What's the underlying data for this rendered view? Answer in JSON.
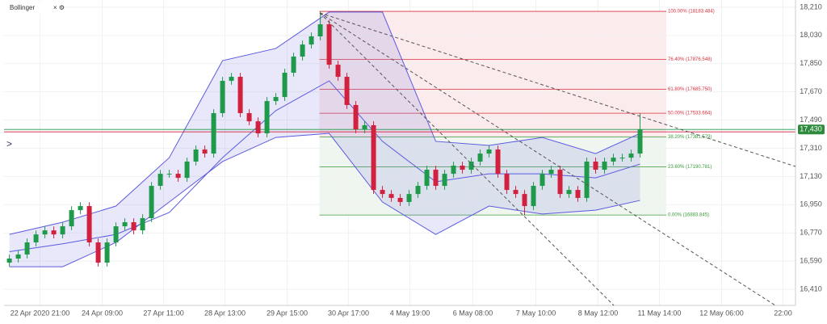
{
  "chart_data": {
    "type": "candlestick",
    "legend_label": "Bollinger",
    "up_color": "#1f9a4a",
    "down_color": "#d2203f",
    "open": [
      16580,
      16606,
      16632,
      16709,
      16760,
      16786,
      16760,
      16812,
      16915,
      16941,
      16709,
      16580,
      16709,
      16812,
      16838,
      16786,
      16864,
      17070,
      17147,
      17147,
      17121,
      17225,
      17302,
      17276,
      17534,
      17740,
      17766,
      17534,
      17482,
      17405,
      17611,
      17637,
      17792,
      17895,
      17972,
      18024,
      18101,
      17843,
      17766,
      17586,
      17431,
      17457,
      17044,
      17018,
      16993,
      16967,
      17018,
      17070,
      17173,
      17070,
      17147,
      17199,
      17173,
      17225,
      17276,
      17302,
      17147,
      17044,
      17018,
      16941,
      17070,
      17147,
      17173,
      17018,
      17044,
      16993,
      17225,
      17173,
      17225,
      17250,
      17250,
      17276
    ],
    "high": [
      16631,
      16657,
      16734,
      16785,
      16811,
      16811,
      16837,
      16940,
      16966,
      16966,
      16734,
      16734,
      16837,
      16863,
      16863,
      16889,
      17095,
      17172,
      17172,
      17172,
      17250,
      17327,
      17327,
      17559,
      17765,
      17791,
      17791,
      17559,
      17507,
      17636,
      17662,
      17817,
      17920,
      17997,
      18049,
      18183,
      18126,
      17868,
      17791,
      17611,
      17482,
      17482,
      17069,
      17043,
      17018,
      17043,
      17095,
      17198,
      17198,
      17172,
      17224,
      17224,
      17250,
      17301,
      17327,
      17327,
      17172,
      17069,
      17043,
      17095,
      17172,
      17198,
      17198,
      17069,
      17069,
      17250,
      17250,
      17250,
      17275,
      17275,
      17301,
      17533
    ],
    "low": [
      16555,
      16581,
      16607,
      16684,
      16735,
      16735,
      16735,
      16787,
      16890,
      16684,
      16555,
      16555,
      16684,
      16787,
      16761,
      16761,
      16839,
      17045,
      17122,
      17096,
      17096,
      17200,
      17251,
      17251,
      17509,
      17715,
      17509,
      17457,
      17380,
      17380,
      17586,
      17612,
      17767,
      17870,
      17947,
      17999,
      17818,
      17741,
      17561,
      17406,
      17406,
      17019,
      16993,
      16968,
      16942,
      16942,
      16993,
      17045,
      17045,
      17045,
      17122,
      17148,
      17148,
      17200,
      17251,
      17122,
      17019,
      16993,
      16884,
      16916,
      17045,
      17122,
      16993,
      16993,
      16968,
      16968,
      17148,
      17148,
      17200,
      17225,
      17225,
      17251
    ],
    "close": [
      16606,
      16632,
      16709,
      16760,
      16786,
      16760,
      16812,
      16915,
      16941,
      16709,
      16580,
      16709,
      16812,
      16838,
      16786,
      16864,
      17070,
      17147,
      17147,
      17121,
      17225,
      17302,
      17276,
      17534,
      17740,
      17766,
      17534,
      17482,
      17405,
      17611,
      17637,
      17792,
      17895,
      17972,
      18024,
      18101,
      17843,
      17766,
      17586,
      17431,
      17457,
      17044,
      17018,
      16993,
      16967,
      17018,
      17070,
      17173,
      17070,
      17147,
      17199,
      17173,
      17225,
      17276,
      17302,
      17147,
      17044,
      17018,
      16941,
      17070,
      17147,
      17173,
      17018,
      17044,
      16993,
      17225,
      17173,
      17225,
      17250,
      17250,
      17276,
      17431
    ],
    "bands": {
      "color": "#5b5be0",
      "x": [
        0,
        6,
        12,
        18,
        24,
        30,
        36,
        42,
        48,
        54,
        60,
        66,
        71
      ],
      "upper": [
        16760,
        16838,
        16941,
        17250,
        17869,
        17947,
        18179,
        18179,
        17354,
        17328,
        17379,
        17276,
        17405
      ],
      "middle": [
        16650,
        16700,
        16760,
        16900,
        17250,
        17550,
        17740,
        17354,
        17096,
        17147,
        17147,
        17121,
        17209
      ],
      "lower": [
        16554,
        16554,
        16709,
        16967,
        17225,
        17379,
        17405,
        16967,
        16760,
        16941,
        16890,
        16915,
        16977
      ]
    },
    "fib_levels": [
      {
        "value": 18183.484,
        "label": "100.00% (18183.484)",
        "color": "#d9303b"
      },
      {
        "value": 17876.548,
        "label": "76.40% (17876.548)",
        "color": "#d9303b"
      },
      {
        "value": 17685.75,
        "label": "61.80% (17685.750)",
        "color": "#d9303b"
      },
      {
        "value": 17533.664,
        "label": "50.00% (17533.664)",
        "color": "#d9303b"
      },
      {
        "value": 17381.579,
        "label": "38.20% (17381.579)",
        "color": "#3a9a3a"
      },
      {
        "value": 17190.781,
        "label": "23.60% (17190.781)",
        "color": "#3a9a3a"
      },
      {
        "value": 16883.845,
        "label": "0.00% (16883.845)",
        "color": "#3a9a3a"
      }
    ],
    "current_price": {
      "value": 17430,
      "label": "17,430"
    },
    "xlim": [
      -0.6,
      88.5
    ],
    "ylim": [
      16307,
      18256
    ],
    "grid": true,
    "yticks": [
      {
        "value": 16410,
        "label": "16,410"
      },
      {
        "value": 16590,
        "label": "16,590"
      },
      {
        "value": 16770,
        "label": "16,770"
      },
      {
        "value": 16950,
        "label": "16,950"
      },
      {
        "value": 17130,
        "label": "17,130"
      },
      {
        "value": 17310,
        "label": "17,310"
      },
      {
        "value": 17490,
        "label": "17,490"
      },
      {
        "value": 17670,
        "label": "17,670"
      },
      {
        "value": 17850,
        "label": "17,850"
      },
      {
        "value": 18030,
        "label": "18,030"
      },
      {
        "value": 18210,
        "label": "18,210"
      }
    ],
    "xticks": [
      {
        "value": 3.45,
        "label": "22 Apr 2020 21:00"
      },
      {
        "value": 10.45,
        "label": "24 Apr 09:00"
      },
      {
        "value": 17.36,
        "label": "27 Apr 11:00"
      },
      {
        "value": 24.27,
        "label": "28 Apr 13:00"
      },
      {
        "value": 31.27,
        "label": "29 Apr 15:00"
      },
      {
        "value": 38.18,
        "label": "30 Apr 17:00"
      },
      {
        "value": 45.09,
        "label": "4 May 19:00"
      },
      {
        "value": 52.18,
        "label": "6 May 08:00"
      },
      {
        "value": 59.27,
        "label": "7 May 10:00"
      },
      {
        "value": 66.27,
        "label": "8 May 12:00"
      },
      {
        "value": 73.18,
        "label": "11 May 14:00"
      },
      {
        "value": 80.18,
        "label": "12 May 06:00"
      },
      {
        "value": 87.09,
        "label": "22:00"
      }
    ]
  }
}
